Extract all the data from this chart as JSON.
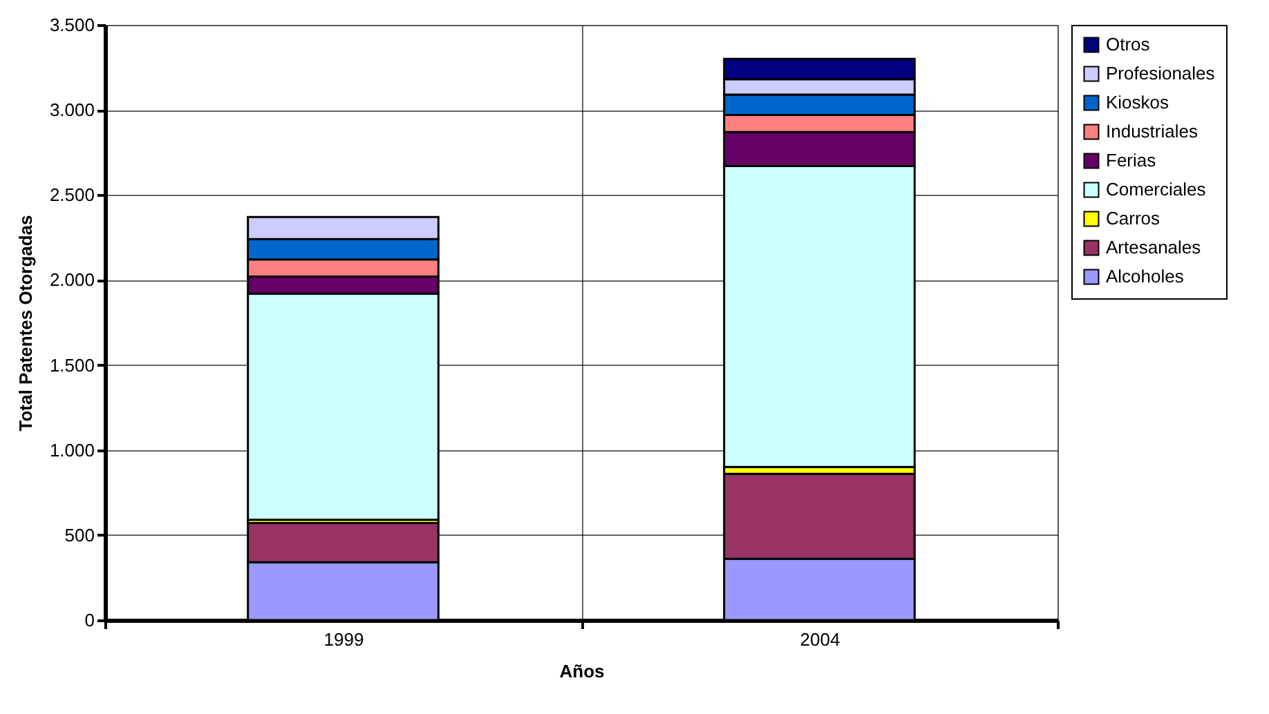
{
  "chart_data": {
    "type": "bar",
    "stacked": true,
    "xlabel": "Años",
    "ylabel": "Total Patentes Otorgadas",
    "categories": [
      "1999",
      "2004"
    ],
    "series": [
      {
        "name": "Alcoholes",
        "color": "#9999ff",
        "values": [
          340,
          360
        ]
      },
      {
        "name": "Artesanales",
        "color": "#993366",
        "values": [
          230,
          500
        ]
      },
      {
        "name": "Carros",
        "color": "#ffff00",
        "values": [
          20,
          40
        ]
      },
      {
        "name": "Comerciales",
        "color": "#ccffff",
        "values": [
          1330,
          1770
        ]
      },
      {
        "name": "Ferias",
        "color": "#660066",
        "values": [
          100,
          200
        ]
      },
      {
        "name": "Industriales",
        "color": "#ff8080",
        "values": [
          100,
          100
        ]
      },
      {
        "name": "Kioskos",
        "color": "#0066cc",
        "values": [
          120,
          120
        ]
      },
      {
        "name": "Profesionales",
        "color": "#ccccff",
        "values": [
          130,
          90
        ]
      },
      {
        "name": "Otros",
        "color": "#000080",
        "values": [
          null,
          120
        ]
      }
    ],
    "ylim": [
      0,
      3500
    ],
    "yticks": [
      {
        "value": 0,
        "label": "0"
      },
      {
        "value": 500,
        "label": "500"
      },
      {
        "value": 1000,
        "label": "1.000"
      },
      {
        "value": 1500,
        "label": "1.500"
      },
      {
        "value": 2000,
        "label": "2.000"
      },
      {
        "value": 2500,
        "label": "2.500"
      },
      {
        "value": 3000,
        "label": "3.000"
      },
      {
        "value": 3500,
        "label": "3.500"
      }
    ],
    "grid": true,
    "legend": "right"
  }
}
